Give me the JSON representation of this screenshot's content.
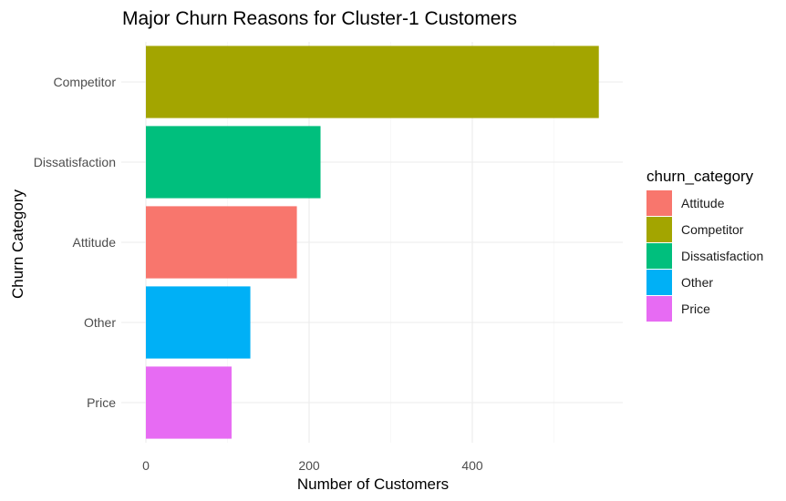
{
  "chart_data": {
    "type": "bar",
    "orientation": "horizontal",
    "title": "Major Churn Reasons for Cluster-1 Customers",
    "xlabel": "Number of Customers",
    "ylabel": "Churn Category",
    "categories": [
      "Competitor",
      "Dissatisfaction",
      "Attitude",
      "Other",
      "Price"
    ],
    "values": [
      555,
      214,
      185,
      128,
      105
    ],
    "colors": {
      "Attitude": "#F8766D",
      "Competitor": "#A3A500",
      "Dissatisfaction": "#00BF7D",
      "Other": "#00B0F6",
      "Price": "#E76BF3"
    },
    "xlim": [
      0,
      580
    ],
    "x_ticks": [
      0,
      200,
      400
    ],
    "x_tick_labels": [
      "0",
      "200",
      "400"
    ],
    "grid": true,
    "legend": {
      "title": "churn_category",
      "position": "right",
      "entries": [
        "Attitude",
        "Competitor",
        "Dissatisfaction",
        "Other",
        "Price"
      ]
    }
  }
}
